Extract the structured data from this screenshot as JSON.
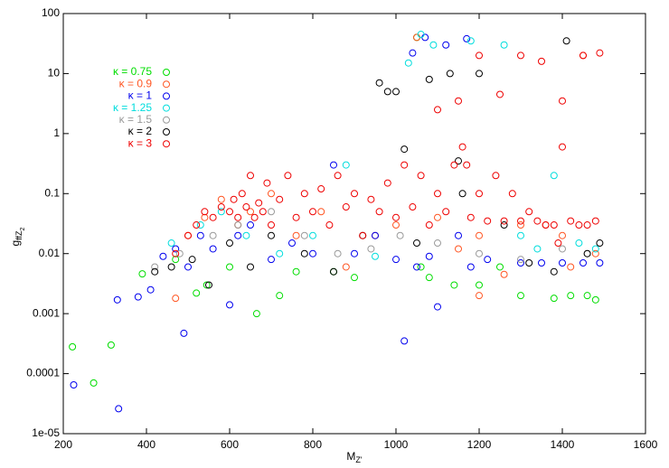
{
  "chart_data": {
    "type": "scatter",
    "xlabel": {
      "main": "M",
      "sub": "Z'"
    },
    "ylabel": {
      "main": "g",
      "sub": "ffZ",
      "subsub": "2"
    },
    "xlim": [
      200,
      1600
    ],
    "xticks": [
      200,
      400,
      600,
      800,
      1000,
      1200,
      1400,
      1600
    ],
    "ylim": [
      1e-05,
      100
    ],
    "ylog": true,
    "yticks": [
      {
        "value": 1e-05,
        "label": "1e-05"
      },
      0.0001,
      0.001,
      0.01,
      0.1,
      1,
      10,
      100
    ],
    "legend": "upper-left",
    "series": [
      {
        "name": "κ = 0.75",
        "color": "#00dd00",
        "x": [
          222,
          273,
          315,
          390,
          470,
          520,
          545,
          600,
          665,
          720,
          760,
          850,
          900,
          1050,
          1080,
          1200,
          1300,
          1380,
          1420,
          1460,
          1480,
          1060,
          1140,
          1250
        ],
        "values": [
          0.00028,
          7e-05,
          0.0003,
          0.0046,
          0.008,
          0.0022,
          0.003,
          0.006,
          0.001,
          0.002,
          0.005,
          0.005,
          0.004,
          40,
          0.004,
          0.003,
          0.002,
          0.0018,
          0.002,
          0.002,
          0.0017,
          0.006,
          0.003,
          0.006
        ]
      },
      {
        "name": "κ = 0.9",
        "color": "#ff5522",
        "x": [
          470,
          500,
          540,
          580,
          620,
          650,
          700,
          760,
          820,
          880,
          950,
          1000,
          1050,
          1100,
          1150,
          1200,
          1260,
          1300,
          1360,
          1400,
          1450,
          1480,
          1420,
          1200
        ],
        "values": [
          0.0018,
          0.02,
          0.04,
          0.08,
          0.03,
          0.05,
          0.1,
          0.02,
          0.05,
          0.006,
          0.02,
          0.03,
          40,
          0.04,
          0.012,
          0.02,
          0.0045,
          0.03,
          0.03,
          0.02,
          20,
          0.01,
          0.006,
          0.002
        ]
      },
      {
        "name": "κ = 1",
        "color": "#0000ee",
        "x": [
          225,
          330,
          380,
          410,
          440,
          470,
          490,
          500,
          530,
          560,
          600,
          620,
          650,
          700,
          750,
          800,
          850,
          900,
          950,
          1000,
          1020,
          1050,
          1080,
          1100,
          1150,
          1180,
          1220,
          1300,
          1350,
          1400,
          1450,
          1490,
          1040,
          1070,
          1120,
          1170,
          333
        ],
        "values": [
          6.5e-05,
          0.0017,
          0.0019,
          0.0025,
          0.009,
          0.012,
          0.00047,
          0.006,
          0.02,
          0.012,
          0.0014,
          0.02,
          0.03,
          0.008,
          0.015,
          0.01,
          0.3,
          0.01,
          0.02,
          0.008,
          0.00035,
          0.006,
          0.009,
          0.0013,
          0.02,
          0.006,
          0.008,
          0.007,
          0.007,
          0.007,
          0.007,
          0.007,
          22,
          40,
          30,
          38,
          2.6e-05
        ]
      },
      {
        "name": "κ = 1.25",
        "color": "#00dddd",
        "x": [
          460,
          530,
          580,
          640,
          720,
          800,
          880,
          950,
          1030,
          1060,
          1090,
          1180,
          1260,
          1300,
          1340,
          1380,
          1440,
          1480
        ],
        "values": [
          0.015,
          0.03,
          0.05,
          0.02,
          0.01,
          0.02,
          0.3,
          0.009,
          15,
          45,
          30,
          35,
          30,
          0.02,
          0.012,
          0.2,
          0.015,
          0.012
        ]
      },
      {
        "name": "κ = 1.5",
        "color": "#999999",
        "x": [
          420,
          480,
          560,
          620,
          700,
          780,
          860,
          940,
          1010,
          1100,
          1200,
          1300,
          1400,
          1460
        ],
        "values": [
          0.006,
          0.01,
          0.02,
          0.03,
          0.05,
          0.02,
          0.01,
          0.012,
          0.02,
          0.015,
          0.01,
          0.008,
          0.012,
          0.01
        ]
      },
      {
        "name": "κ = 2",
        "color": "#000000",
        "x": [
          420,
          460,
          510,
          550,
          600,
          650,
          700,
          780,
          850,
          920,
          960,
          980,
          1000,
          1050,
          1080,
          1130,
          1150,
          1200,
          1260,
          1320,
          1380,
          1410,
          1460,
          1490,
          1020,
          1160
        ],
        "values": [
          0.005,
          0.006,
          0.008,
          0.003,
          0.015,
          0.006,
          0.02,
          0.01,
          0.005,
          0.02,
          7,
          5,
          5,
          0.015,
          8,
          10,
          0.35,
          10,
          0.03,
          0.007,
          0.005,
          35,
          0.01,
          0.015,
          0.55,
          0.1
        ]
      },
      {
        "name": "κ = 3",
        "color": "#ee0000",
        "x": [
          470,
          500,
          520,
          540,
          560,
          580,
          600,
          610,
          620,
          630,
          640,
          650,
          660,
          670,
          680,
          690,
          700,
          720,
          740,
          760,
          780,
          800,
          820,
          840,
          860,
          880,
          900,
          920,
          940,
          960,
          980,
          1000,
          1020,
          1040,
          1060,
          1080,
          1100,
          1120,
          1140,
          1160,
          1180,
          1200,
          1220,
          1240,
          1260,
          1280,
          1300,
          1320,
          1340,
          1360,
          1380,
          1400,
          1420,
          1440,
          1460,
          1480,
          1100,
          1150,
          1200,
          1250,
          1300,
          1350,
          1400,
          1450,
          1490,
          1170,
          1390
        ],
        "values": [
          0.01,
          0.02,
          0.03,
          0.05,
          0.04,
          0.06,
          0.05,
          0.08,
          0.04,
          0.1,
          0.06,
          0.2,
          0.04,
          0.07,
          0.05,
          0.15,
          0.03,
          0.08,
          0.2,
          0.04,
          0.1,
          0.05,
          0.12,
          0.03,
          0.2,
          0.06,
          0.1,
          0.02,
          0.08,
          0.05,
          0.15,
          0.04,
          0.3,
          0.06,
          0.2,
          0.03,
          0.1,
          0.05,
          0.3,
          0.6,
          0.04,
          0.1,
          0.035,
          0.2,
          0.035,
          0.1,
          0.035,
          0.05,
          0.035,
          0.03,
          0.03,
          0.6,
          0.035,
          0.03,
          0.03,
          0.035,
          2.5,
          3.5,
          20,
          4.5,
          20,
          16,
          3.5,
          20,
          22,
          0.3,
          0.015
        ]
      }
    ]
  }
}
